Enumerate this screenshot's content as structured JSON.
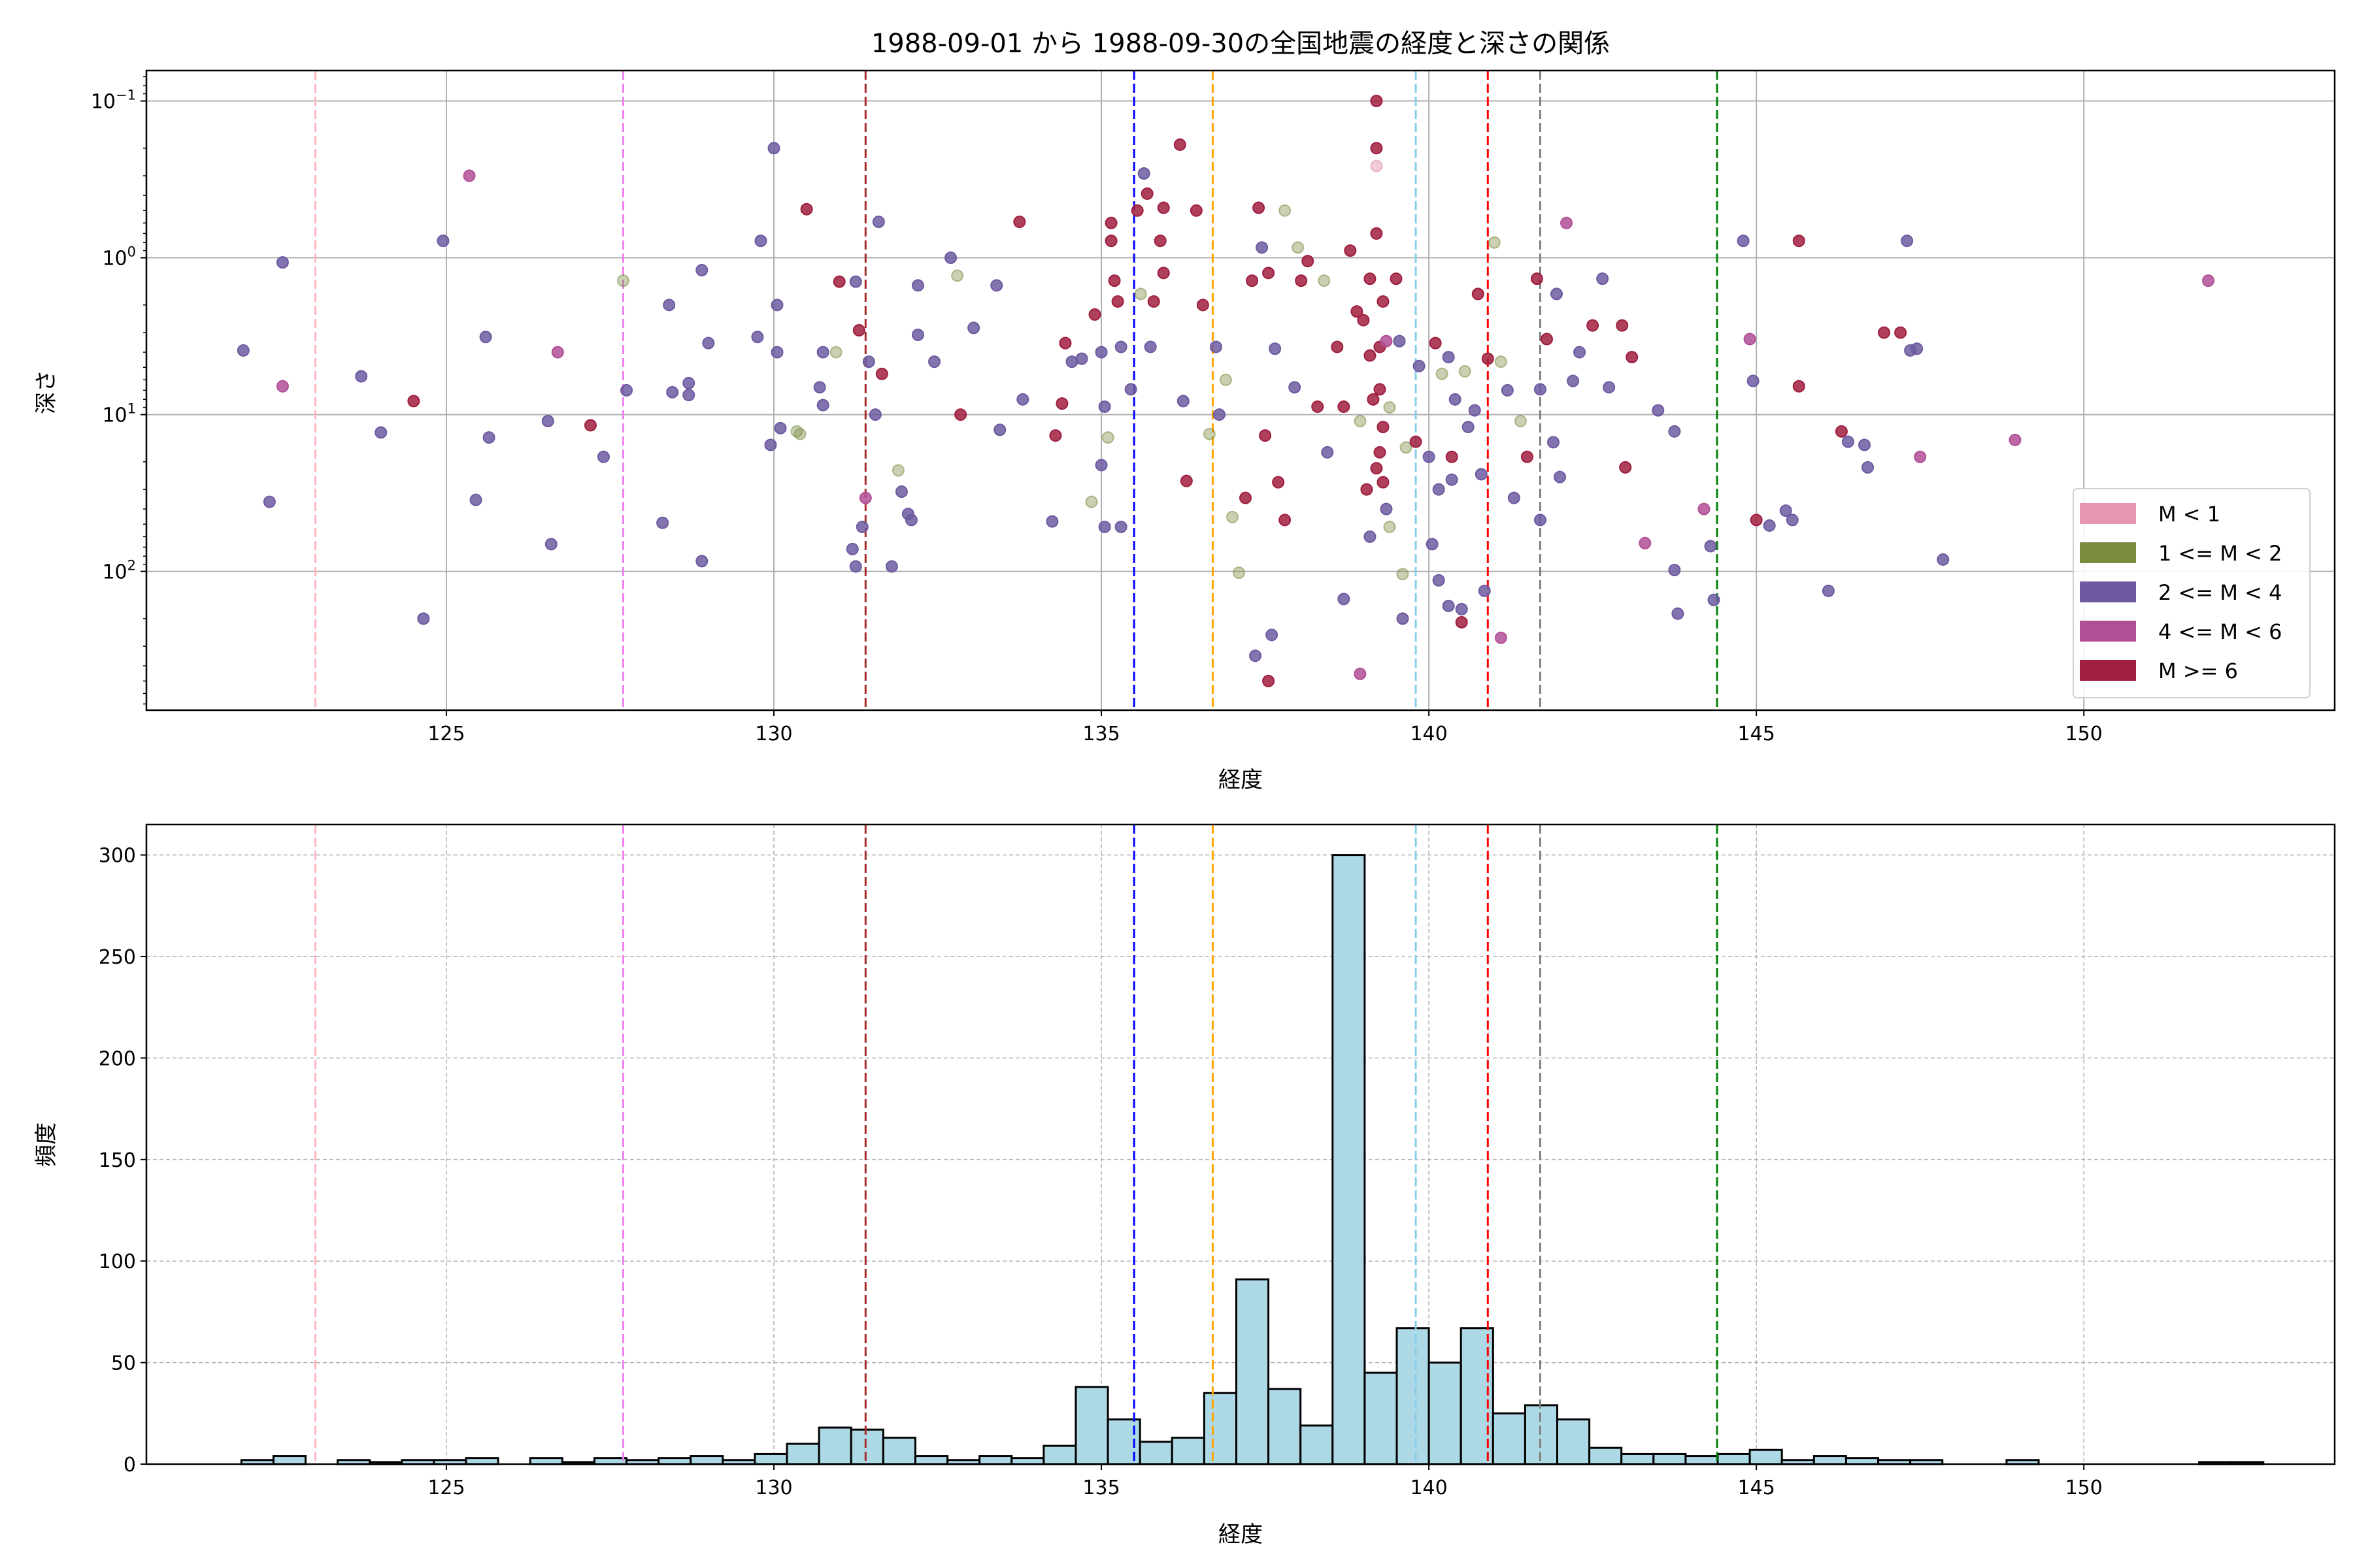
{
  "chart_data": [
    {
      "type": "scatter",
      "title": "1988-09-01 から 1988-09-30の全国地震の経度と深さの関係",
      "xlabel": "経度",
      "ylabel": "深さ",
      "xlim": [
        120.42,
        153.83
      ],
      "ylim": [
        0.064,
        767
      ],
      "yscale": "log",
      "y_inverted": true,
      "grid": true,
      "x_ticks": [
        "125",
        "130",
        "135",
        "140",
        "145",
        "150"
      ],
      "y_ticks": [
        {
          "value": 0.1,
          "base": "10",
          "exp": "−1"
        },
        {
          "value": 1,
          "base": "10",
          "exp": "0"
        },
        {
          "value": 10,
          "base": "10",
          "exp": "1"
        },
        {
          "value": 100,
          "base": "10",
          "exp": "2"
        }
      ],
      "legend_position": "lower-right",
      "classes": [
        {
          "label": "M < 1",
          "color": "#e597b2"
        },
        {
          "label": "1 <= M < 2",
          "color": "#7a8c40"
        },
        {
          "label": "2 <= M < 4",
          "color": "#6d5aa0"
        },
        {
          "label": "4 <= M < 6",
          "color": "#b14f95"
        },
        {
          "label": "M >= 6",
          "color": "#a01e40"
        }
      ],
      "vlines": [
        {
          "x": 123.0,
          "color": "#ffb6c1"
        },
        {
          "x": 127.7,
          "color": "#ee82ee"
        },
        {
          "x": 131.4,
          "color": "#a52a2a"
        },
        {
          "x": 135.5,
          "color": "#0000ff"
        },
        {
          "x": 136.7,
          "color": "#ffa500"
        },
        {
          "x": 139.8,
          "color": "#87ceeb"
        },
        {
          "x": 140.9,
          "color": "#ff0000"
        },
        {
          "x": 141.7,
          "color": "#808080"
        },
        {
          "x": 144.4,
          "color": "#008000"
        }
      ],
      "points": [
        [
          121.9,
          3.9,
          2
        ],
        [
          122.5,
          1.07,
          2
        ],
        [
          122.5,
          6.6,
          3
        ],
        [
          122.3,
          36,
          2
        ],
        [
          123.7,
          5.7,
          2
        ],
        [
          124.0,
          13,
          2
        ],
        [
          124.5,
          8.2,
          4
        ],
        [
          124.65,
          200,
          2
        ],
        [
          124.95,
          0.78,
          2
        ],
        [
          125.35,
          0.3,
          3
        ],
        [
          125.45,
          35,
          2
        ],
        [
          125.6,
          3.2,
          2
        ],
        [
          125.65,
          14,
          2
        ],
        [
          126.55,
          11,
          2
        ],
        [
          126.7,
          4,
          3
        ],
        [
          126.6,
          67,
          2
        ],
        [
          127.2,
          11.7,
          4
        ],
        [
          127.4,
          18.6,
          2
        ],
        [
          127.7,
          1.4,
          1
        ],
        [
          127.75,
          7,
          2
        ],
        [
          128.3,
          49,
          2
        ],
        [
          128.4,
          2,
          2
        ],
        [
          128.45,
          7.2,
          2
        ],
        [
          128.7,
          7.5,
          2
        ],
        [
          128.7,
          6.3,
          2
        ],
        [
          128.9,
          86,
          2
        ],
        [
          128.9,
          1.2,
          2
        ],
        [
          129.0,
          3.5,
          2
        ],
        [
          129.75,
          3.2,
          2
        ],
        [
          129.8,
          0.78,
          2
        ],
        [
          129.95,
          15.6,
          2
        ],
        [
          130.0,
          0.2,
          2
        ],
        [
          130.05,
          2,
          2
        ],
        [
          130.05,
          4,
          2
        ],
        [
          130.1,
          12.2,
          2
        ],
        [
          130.35,
          12.8,
          1
        ],
        [
          130.4,
          13.3,
          1
        ],
        [
          130.5,
          0.49,
          4
        ],
        [
          130.7,
          6.7,
          2
        ],
        [
          130.75,
          8.7,
          2
        ],
        [
          130.75,
          4,
          2
        ],
        [
          130.95,
          4,
          1
        ],
        [
          131.0,
          1.42,
          4
        ],
        [
          131.2,
          72,
          2
        ],
        [
          131.25,
          93,
          2
        ],
        [
          131.25,
          1.42,
          2
        ],
        [
          131.3,
          2.9,
          4
        ],
        [
          131.35,
          52,
          2
        ],
        [
          131.4,
          34,
          3
        ],
        [
          131.45,
          4.6,
          2
        ],
        [
          131.55,
          10,
          2
        ],
        [
          131.6,
          0.59,
          2
        ],
        [
          131.65,
          5.5,
          4
        ],
        [
          131.8,
          93,
          2
        ],
        [
          131.9,
          22.7,
          1
        ],
        [
          131.95,
          31,
          2
        ],
        [
          132.05,
          43,
          2
        ],
        [
          132.1,
          47,
          2
        ],
        [
          132.2,
          1.5,
          2
        ],
        [
          132.2,
          3.1,
          2
        ],
        [
          132.45,
          4.6,
          2
        ],
        [
          132.7,
          1.0,
          2
        ],
        [
          132.8,
          1.3,
          1
        ],
        [
          132.85,
          10,
          4
        ],
        [
          133.05,
          2.8,
          2
        ],
        [
          133.4,
          1.5,
          2
        ],
        [
          133.45,
          12.5,
          2
        ],
        [
          133.75,
          0.59,
          4
        ],
        [
          133.8,
          8,
          2
        ],
        [
          134.25,
          48,
          2
        ],
        [
          134.3,
          13.6,
          4
        ],
        [
          134.4,
          8.5,
          4
        ],
        [
          134.45,
          3.5,
          4
        ],
        [
          134.55,
          4.6,
          2
        ],
        [
          134.7,
          4.4,
          2
        ],
        [
          134.85,
          36,
          1
        ],
        [
          134.9,
          2.3,
          4
        ],
        [
          135.0,
          21,
          2
        ],
        [
          135.0,
          4,
          2
        ],
        [
          135.05,
          8.9,
          2
        ],
        [
          135.05,
          52,
          2
        ],
        [
          135.1,
          14,
          1
        ],
        [
          135.15,
          0.6,
          4
        ],
        [
          135.15,
          0.78,
          4
        ],
        [
          135.2,
          1.4,
          4
        ],
        [
          135.25,
          1.9,
          4
        ],
        [
          135.3,
          3.7,
          2
        ],
        [
          135.3,
          52,
          2
        ],
        [
          135.45,
          6.9,
          2
        ],
        [
          135.55,
          0.5,
          4
        ],
        [
          135.6,
          1.7,
          1
        ],
        [
          135.65,
          0.29,
          2
        ],
        [
          135.7,
          0.39,
          4
        ],
        [
          135.75,
          3.7,
          2
        ],
        [
          135.8,
          1.9,
          4
        ],
        [
          135.9,
          0.78,
          4
        ],
        [
          135.95,
          0.48,
          4
        ],
        [
          135.95,
          1.25,
          4
        ],
        [
          136.2,
          0.19,
          4
        ],
        [
          136.25,
          8.2,
          2
        ],
        [
          136.3,
          26.5,
          4
        ],
        [
          136.45,
          0.5,
          4
        ],
        [
          136.55,
          2,
          4
        ],
        [
          136.65,
          13.3,
          1
        ],
        [
          136.75,
          3.7,
          2
        ],
        [
          136.8,
          10,
          2
        ],
        [
          136.9,
          6,
          1
        ],
        [
          137.0,
          45,
          1
        ],
        [
          137.1,
          102,
          1
        ],
        [
          137.2,
          34,
          4
        ],
        [
          137.3,
          1.4,
          4
        ],
        [
          137.4,
          0.48,
          4
        ],
        [
          137.45,
          0.86,
          2
        ],
        [
          137.5,
          13.6,
          4
        ],
        [
          137.55,
          1.25,
          4
        ],
        [
          137.65,
          3.8,
          2
        ],
        [
          137.7,
          27,
          4
        ],
        [
          137.8,
          0.5,
          1
        ],
        [
          137.8,
          47,
          4
        ],
        [
          137.95,
          6.7,
          2
        ],
        [
          138.0,
          0.86,
          1
        ],
        [
          138.05,
          1.4,
          4
        ],
        [
          138.15,
          1.05,
          4
        ],
        [
          138.3,
          8.9,
          4
        ],
        [
          138.4,
          1.4,
          1
        ],
        [
          138.45,
          17.4,
          2
        ],
        [
          138.6,
          3.7,
          4
        ],
        [
          138.7,
          8.9,
          4
        ],
        [
          138.8,
          0.9,
          4
        ],
        [
          138.9,
          2.2,
          4
        ],
        [
          139.1,
          1.36,
          4
        ],
        [
          139.2,
          0.1,
          4
        ],
        [
          139.2,
          0.2,
          4
        ],
        [
          139.2,
          0.26,
          0
        ],
        [
          139.2,
          0.7,
          4
        ],
        [
          139.25,
          3.7,
          4
        ],
        [
          139.25,
          6.9,
          4
        ],
        [
          139.25,
          17.4,
          4
        ],
        [
          139.3,
          27,
          4
        ],
        [
          139.3,
          1.9,
          4
        ],
        [
          139.35,
          3.4,
          3
        ],
        [
          139.4,
          52,
          1
        ],
        [
          139.5,
          1.36,
          4
        ],
        [
          139.55,
          3.4,
          2
        ],
        [
          139.6,
          104,
          1
        ],
        [
          139.6,
          200,
          2
        ],
        [
          139.65,
          16.2,
          1
        ],
        [
          139.8,
          14.9,
          4
        ],
        [
          139.85,
          4.9,
          2
        ],
        [
          140.0,
          18.6,
          2
        ],
        [
          140.05,
          67,
          2
        ],
        [
          140.15,
          114,
          2
        ],
        [
          140.15,
          30,
          2
        ],
        [
          140.3,
          4.3,
          2
        ],
        [
          140.35,
          26,
          2
        ],
        [
          140.35,
          18.6,
          4
        ],
        [
          140.5,
          174,
          2
        ],
        [
          140.55,
          5.3,
          1
        ],
        [
          140.7,
          9.4,
          2
        ],
        [
          140.75,
          1.7,
          4
        ],
        [
          140.85,
          133,
          2
        ],
        [
          140.9,
          4.4,
          4
        ],
        [
          141.0,
          0.8,
          1
        ],
        [
          141.1,
          4.6,
          1
        ],
        [
          141.3,
          34,
          2
        ],
        [
          141.5,
          18.6,
          4
        ],
        [
          141.65,
          1.36,
          4
        ],
        [
          141.7,
          6.9,
          2
        ],
        [
          141.7,
          47,
          2
        ],
        [
          141.8,
          3.3,
          4
        ],
        [
          141.95,
          1.7,
          2
        ],
        [
          142.1,
          0.6,
          3
        ],
        [
          142.2,
          6.1,
          2
        ],
        [
          142.5,
          2.7,
          4
        ],
        [
          142.65,
          1.36,
          2
        ],
        [
          142.75,
          6.7,
          2
        ],
        [
          142.95,
          2.7,
          4
        ],
        [
          143.0,
          21.7,
          4
        ],
        [
          143.1,
          4.3,
          4
        ],
        [
          143.3,
          66,
          3
        ],
        [
          143.5,
          9.4,
          2
        ],
        [
          143.75,
          12.8,
          2
        ],
        [
          143.8,
          186,
          2
        ],
        [
          143.75,
          98,
          2
        ],
        [
          144.2,
          40,
          3
        ],
        [
          144.3,
          69,
          2
        ],
        [
          144.35,
          152,
          2
        ],
        [
          144.8,
          0.78,
          2
        ],
        [
          144.9,
          3.3,
          3
        ],
        [
          144.95,
          6.1,
          2
        ],
        [
          145.0,
          47,
          4
        ],
        [
          145.2,
          51,
          2
        ],
        [
          145.45,
          41,
          2
        ],
        [
          145.55,
          47,
          2
        ],
        [
          145.65,
          0.78,
          4
        ],
        [
          145.65,
          6.6,
          4
        ],
        [
          146.1,
          133,
          2
        ],
        [
          146.3,
          12.8,
          4
        ],
        [
          146.4,
          14.9,
          2
        ],
        [
          146.65,
          15.6,
          2
        ],
        [
          146.7,
          21.7,
          2
        ],
        [
          146.95,
          3.0,
          4
        ],
        [
          147.2,
          3.0,
          4
        ],
        [
          147.3,
          0.78,
          2
        ],
        [
          147.35,
          3.9,
          2
        ],
        [
          147.45,
          3.8,
          2
        ],
        [
          147.5,
          18.6,
          3
        ],
        [
          147.85,
          84,
          2
        ],
        [
          148.95,
          14.5,
          3
        ],
        [
          151.9,
          1.4,
          3
        ],
        [
          137.55,
          500,
          4
        ],
        [
          137.35,
          345,
          2
        ],
        [
          137.6,
          254,
          2
        ],
        [
          138.7,
          150,
          2
        ],
        [
          138.95,
          450,
          3
        ],
        [
          140.3,
          166,
          2
        ],
        [
          140.5,
          211,
          4
        ],
        [
          141.1,
          265,
          3
        ],
        [
          139.0,
          2.5,
          4
        ],
        [
          139.1,
          4.2,
          4
        ],
        [
          139.15,
          8,
          4
        ],
        [
          139.3,
          12,
          4
        ],
        [
          139.2,
          22,
          4
        ],
        [
          139.05,
          30,
          4
        ],
        [
          139.35,
          40,
          2
        ],
        [
          138.95,
          11,
          1
        ],
        [
          139.4,
          9,
          1
        ],
        [
          139.1,
          60,
          2
        ],
        [
          140.2,
          5.5,
          1
        ],
        [
          140.4,
          8,
          2
        ],
        [
          140.6,
          12,
          2
        ],
        [
          140.1,
          3.5,
          4
        ],
        [
          140.8,
          24,
          2
        ],
        [
          141.2,
          7,
          2
        ],
        [
          141.4,
          11,
          1
        ],
        [
          141.9,
          15,
          2
        ],
        [
          142.3,
          4,
          2
        ],
        [
          142.0,
          25,
          2
        ]
      ]
    },
    {
      "type": "bar",
      "title": "",
      "xlabel": "経度",
      "ylabel": "頻度",
      "xlim": [
        120.42,
        153.83
      ],
      "ylim": [
        0,
        315
      ],
      "grid": true,
      "bin_start": 121.87,
      "bin_width": 0.49,
      "values": [
        2,
        4,
        0,
        2,
        1,
        2,
        2,
        3,
        0,
        3,
        1,
        3,
        2,
        3,
        4,
        2,
        5,
        10,
        18,
        17,
        13,
        4,
        2,
        4,
        3,
        9,
        38,
        22,
        11,
        13,
        35,
        91,
        37,
        19,
        300,
        45,
        67,
        50,
        67,
        25,
        29,
        22,
        8,
        5,
        5,
        4,
        5,
        7,
        2,
        4,
        3,
        2,
        2,
        0,
        0,
        2,
        0,
        0,
        0,
        0,
        0,
        1,
        1
      ],
      "bar_color": "#add8e6",
      "x_ticks": [
        "125",
        "130",
        "135",
        "140",
        "145",
        "150"
      ],
      "y_ticks": [
        "0",
        "50",
        "100",
        "150",
        "200",
        "250",
        "300"
      ]
    }
  ]
}
